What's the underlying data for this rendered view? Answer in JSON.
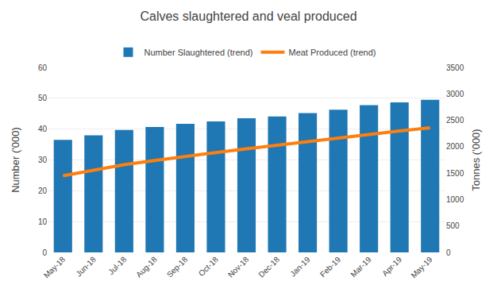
{
  "chart_data": {
    "type": "bar",
    "title": "Calves slaughtered and veal produced",
    "categories": [
      "May-18",
      "Jun-18",
      "Jul-18",
      "Aug-18",
      "Sep-18",
      "Oct-18",
      "Nov-18",
      "Dec-18",
      "Jan-19",
      "Feb-19",
      "Mar-19",
      "Apr-19",
      "May-19"
    ],
    "series": [
      {
        "name": "Number Slaughtered (trend)",
        "type": "bar",
        "values": [
          36.5,
          38.0,
          39.7,
          40.7,
          41.7,
          42.5,
          43.5,
          44.1,
          45.2,
          46.3,
          47.8,
          48.7,
          49.5
        ]
      },
      {
        "name": "Meat Produced (trend)",
        "type": "line",
        "axis": "y2",
        "values": [
          1450,
          1560,
          1660,
          1740,
          1820,
          1890,
          1960,
          2030,
          2100,
          2170,
          2230,
          2300,
          2360
        ]
      }
    ],
    "ylabel": "Number ('000)",
    "y2label": "Tonnes ('000)",
    "ylim": [
      0,
      60
    ],
    "yticks": [
      0,
      10,
      20,
      30,
      40,
      50,
      60
    ],
    "y2lim": [
      0,
      3500
    ],
    "y2ticks": [
      0,
      500,
      1000,
      1500,
      2000,
      2500,
      3000,
      3500
    ],
    "grid": true,
    "legend": "top"
  }
}
